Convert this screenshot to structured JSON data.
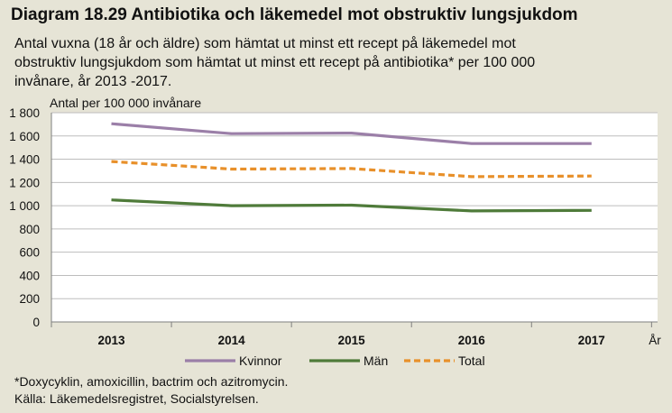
{
  "title": "Diagram 18.29 Antibiotika och läkemedel mot obstruktiv lungsjukdom",
  "subtitle_lines": [
    "Antal vuxna (18 år och äldre) som hämtat ut minst ett recept på läkemedel mot",
    "obstruktiv lungsjukdom som hämtat ut minst ett recept på antibiotika* per 100 000",
    "invånare, år 2013 -2017."
  ],
  "footnotes": [
    "*Doxycyklin, amoxicillin, bactrim och azitromycin.",
    "Källa: Läkemedelsregistret, Socialstyrelsen."
  ],
  "chart_data": {
    "type": "line",
    "ylabel": "Antal per 100 000 invånare",
    "xlabel": "År",
    "categories": [
      "2013",
      "2014",
      "2015",
      "2016",
      "2017"
    ],
    "ylim": [
      0,
      1800
    ],
    "yticks": [
      0,
      200,
      400,
      600,
      800,
      1000,
      1200,
      1400,
      1600,
      1800
    ],
    "ytick_labels": [
      "0",
      "200",
      "400",
      "600",
      "800",
      "1 000",
      "1 200",
      "1 400",
      "1 600",
      "1 800"
    ],
    "grid": true,
    "legend_position": "bottom",
    "series": [
      {
        "name": "Kvinnor",
        "values": [
          1705,
          1620,
          1625,
          1535,
          1535
        ],
        "color": "#9b7fa8",
        "dash": false
      },
      {
        "name": "Män",
        "values": [
          1050,
          1000,
          1005,
          955,
          960
        ],
        "color": "#4f7b3a",
        "dash": false
      },
      {
        "name": "Total",
        "values": [
          1380,
          1315,
          1320,
          1250,
          1255
        ],
        "color": "#e8902a",
        "dash": true
      }
    ]
  }
}
